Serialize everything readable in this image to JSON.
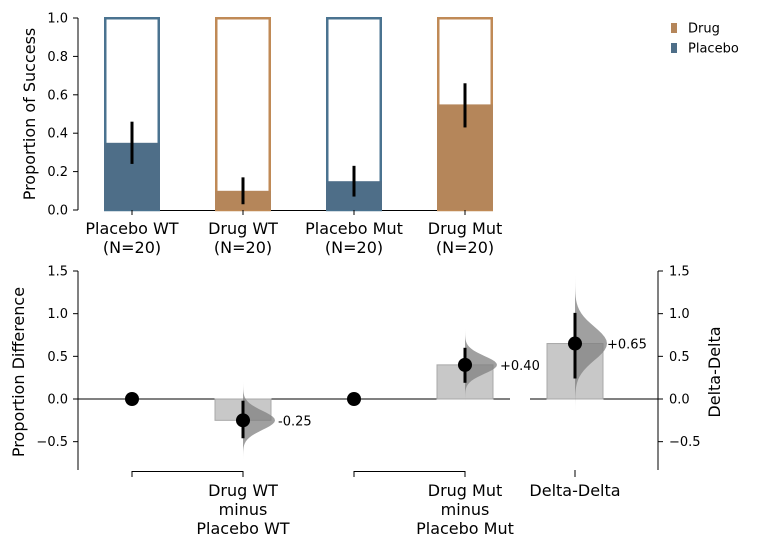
{
  "chart_data": [
    {
      "type": "bar",
      "panel": "top",
      "ylabel": "Proportion of Success",
      "ylim": [
        0,
        1.0
      ],
      "yticks": [
        0.0,
        0.2,
        0.4,
        0.6,
        0.8,
        1.0
      ],
      "ytick_labels": [
        "0.0",
        "0.2",
        "0.4",
        "0.6",
        "0.8",
        "1.0"
      ],
      "categories": [
        "Placebo WT\n(N=20)",
        "Drug WT\n(N=20)",
        "Placebo Mut\n(N=20)",
        "Drug Mut\n(N=20)"
      ],
      "groups": [
        "Placebo",
        "Drug",
        "Placebo",
        "Drug"
      ],
      "values": [
        0.35,
        0.1,
        0.15,
        0.55
      ],
      "ci_low": [
        0.24,
        0.03,
        0.07,
        0.43
      ],
      "ci_high": [
        0.46,
        0.17,
        0.23,
        0.66
      ],
      "legend": [
        {
          "label": "Drug",
          "color": "#b5865a"
        },
        {
          "label": "Placebo",
          "color": "#4e6e88"
        }
      ],
      "legend_position": "top-right",
      "colors": {
        "Drug": "#b5865a",
        "Placebo": "#4e6e88",
        "Drug_outline": "#c08a56",
        "Placebo_outline": "#4a7390"
      }
    },
    {
      "type": "estimation",
      "panel": "bottom",
      "ylabel": "Proportion Difference",
      "ylabel_right": "Delta-Delta",
      "ylim": [
        -0.85,
        1.5
      ],
      "yticks": [
        -0.5,
        0.0,
        0.5,
        1.0,
        1.5
      ],
      "ytick_labels": [
        "−0.5",
        "0.0",
        "0.5",
        "1.0",
        "1.5"
      ],
      "comparisons": [
        {
          "label": "Drug WT\nminus\nPlacebo WT",
          "reference": 0.0,
          "difference": -0.25,
          "ci": [
            -0.46,
            -0.02
          ],
          "annotation": "-0.25"
        },
        {
          "label": "Drug Mut\nminus\nPlacebo Mut",
          "reference": 0.0,
          "difference": 0.4,
          "ci": [
            0.19,
            0.6
          ],
          "annotation": "+0.40"
        }
      ],
      "delta_delta": {
        "label": "Delta-Delta",
        "value": 0.65,
        "ci": [
          0.24,
          1.01
        ],
        "annotation": "+0.65"
      },
      "bar_color": "#c8c8c8",
      "dist_color": "#808080"
    }
  ]
}
